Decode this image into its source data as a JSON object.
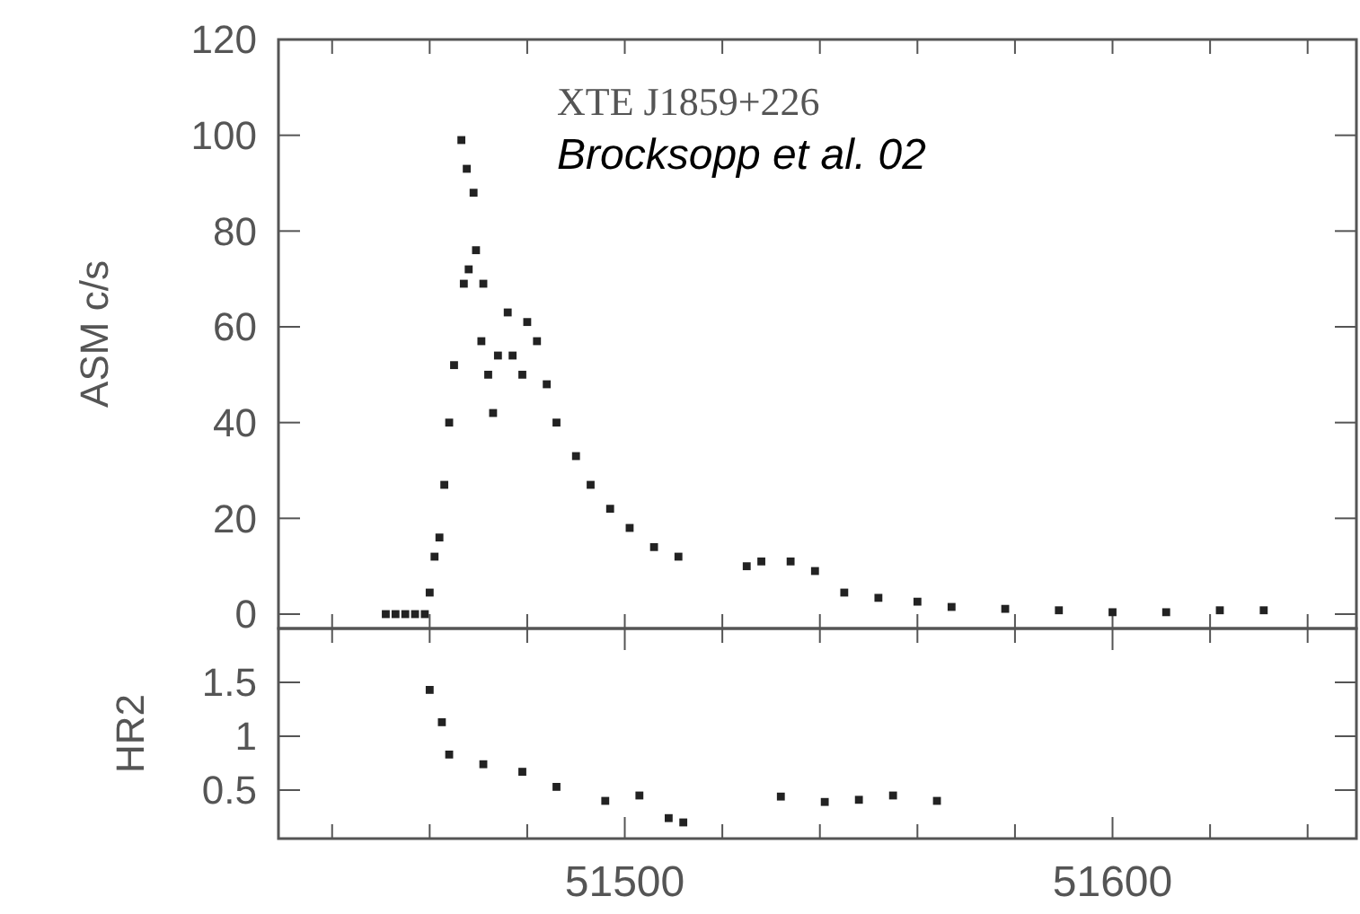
{
  "chart_data": [
    {
      "type": "scatter",
      "ylabel": "ASM c/s",
      "annotations": [
        "XTE J1859+226",
        "Brocksopp et al. 02"
      ],
      "marker": "square",
      "tick_labels": "y",
      "xlim": [
        51429,
        51650
      ],
      "xticks": [
        {
          "value": 51440,
          "label": null
        },
        {
          "value": 51460,
          "label": null
        },
        {
          "value": 51480,
          "label": null
        },
        {
          "value": 51500,
          "label": null
        },
        {
          "value": 51520,
          "label": null
        },
        {
          "value": 51540,
          "label": null
        },
        {
          "value": 51560,
          "label": null
        },
        {
          "value": 51580,
          "label": null
        },
        {
          "value": 51600,
          "label": null
        },
        {
          "value": 51620,
          "label": null
        },
        {
          "value": 51640,
          "label": null
        }
      ],
      "ylim": [
        -3,
        120
      ],
      "yticks": [
        0,
        20,
        40,
        60,
        80,
        100,
        120
      ],
      "series": [
        {
          "color": "#222222",
          "x": [
            51451,
            51453,
            51455,
            51457,
            51459,
            51460,
            51461,
            51462,
            51463,
            51464,
            51465,
            51466.5,
            51467.6,
            51469,
            51467,
            51468,
            51469.5,
            51471,
            51470.6,
            51472,
            51473,
            51474,
            51476,
            51477,
            51479,
            51480,
            51482,
            51484,
            51486,
            51490,
            51493,
            51497,
            51501,
            51506,
            51511,
            51525,
            51528,
            51534,
            51539,
            51545,
            51552,
            51560,
            51567,
            51578,
            51589,
            51600,
            51611,
            51622,
            51631
          ],
          "values": [
            0,
            0,
            0,
            0,
            0,
            4.5,
            12,
            16,
            27,
            40,
            52,
            99,
            93,
            88,
            69,
            72,
            76,
            69,
            57,
            50,
            42,
            54,
            63,
            54,
            50,
            61,
            57,
            48,
            40,
            33,
            27,
            22,
            18,
            14,
            12,
            10,
            11,
            11,
            9,
            4.5,
            3.4,
            2.6,
            1.5,
            1.1,
            0.8,
            0.4,
            0.4,
            0.8,
            0.8
          ]
        }
      ]
    },
    {
      "type": "scatter",
      "ylabel": "HR2",
      "marker": "square",
      "xlim": [
        51429,
        51650
      ],
      "xticks": [
        {
          "value": 51440,
          "label": null
        },
        {
          "value": 51460,
          "label": null
        },
        {
          "value": 51480,
          "label": null
        },
        {
          "value": 51500,
          "label": "51500"
        },
        {
          "value": 51520,
          "label": null
        },
        {
          "value": 51540,
          "label": null
        },
        {
          "value": 51560,
          "label": null
        },
        {
          "value": 51580,
          "label": null
        },
        {
          "value": 51600,
          "label": "51600"
        },
        {
          "value": 51620,
          "label": null
        },
        {
          "value": 51640,
          "label": null
        }
      ],
      "ylim": [
        0.05,
        2
      ],
      "yticks": [
        0.5,
        1,
        1.5
      ],
      "series": [
        {
          "color": "#222222",
          "x": [
            51460,
            51462.5,
            51464,
            51471,
            51479,
            51486,
            51496,
            51503,
            51509,
            51512,
            51532,
            51541,
            51548,
            51555,
            51564
          ],
          "values": [
            1.43,
            1.13,
            0.83,
            0.74,
            0.67,
            0.53,
            0.4,
            0.45,
            0.24,
            0.2,
            0.44,
            0.39,
            0.41,
            0.45,
            0.4
          ]
        }
      ]
    }
  ]
}
